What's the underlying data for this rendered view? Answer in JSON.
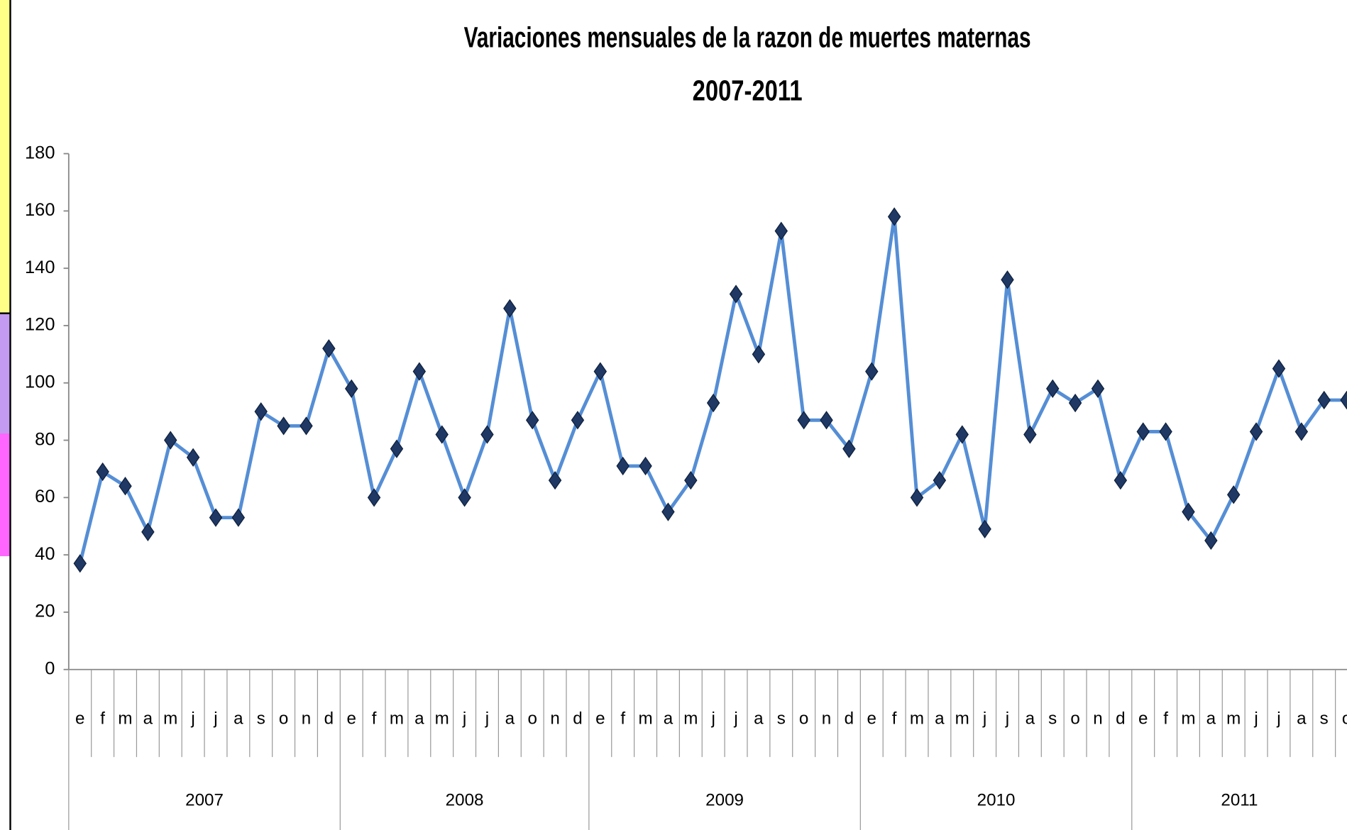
{
  "chart_data": {
    "type": "line",
    "title": "Variaciones mensuales de la razon de muertes maternas",
    "subtitle": "2007-2011",
    "color": "#558ed5",
    "marker_color": "#1f3864",
    "ylim": [
      0,
      180
    ],
    "yticks": [
      0,
      20,
      40,
      60,
      80,
      100,
      120,
      140,
      160,
      180
    ],
    "groups": [
      {
        "label": "2007",
        "categories": [
          "e",
          "f",
          "m",
          "a",
          "m",
          "j",
          "j",
          "a",
          "s",
          "o",
          "n",
          "d"
        ],
        "values": [
          37,
          69,
          64,
          48,
          80,
          74,
          53,
          53,
          90,
          85,
          85,
          112
        ]
      },
      {
        "label": "2008",
        "categories": [
          "e",
          "f",
          "m",
          "a",
          "m",
          "j",
          "j",
          "a",
          "o",
          "n",
          "d"
        ],
        "values": [
          98,
          60,
          77,
          104,
          82,
          60,
          82,
          126,
          87,
          66,
          87
        ]
      },
      {
        "label": "2009",
        "categories": [
          "e",
          "f",
          "m",
          "a",
          "m",
          "j",
          "j",
          "a",
          "s",
          "o",
          "n",
          "d"
        ],
        "values": [
          104,
          71,
          71,
          55,
          66,
          93,
          131,
          110,
          153,
          87,
          87,
          77
        ]
      },
      {
        "label": "2010",
        "categories": [
          "e",
          "f",
          "m",
          "a",
          "m",
          "j",
          "j",
          "a",
          "s",
          "o",
          "n",
          "d"
        ],
        "values": [
          104,
          158,
          60,
          66,
          82,
          49,
          136,
          82,
          98,
          93,
          98,
          66
        ]
      },
      {
        "label": "2011",
        "categories": [
          "e",
          "f",
          "m",
          "a",
          "m",
          "j",
          "j",
          "a",
          "s",
          "o"
        ],
        "values": [
          83,
          83,
          55,
          45,
          61,
          83,
          105,
          83,
          94,
          94
        ]
      }
    ]
  }
}
